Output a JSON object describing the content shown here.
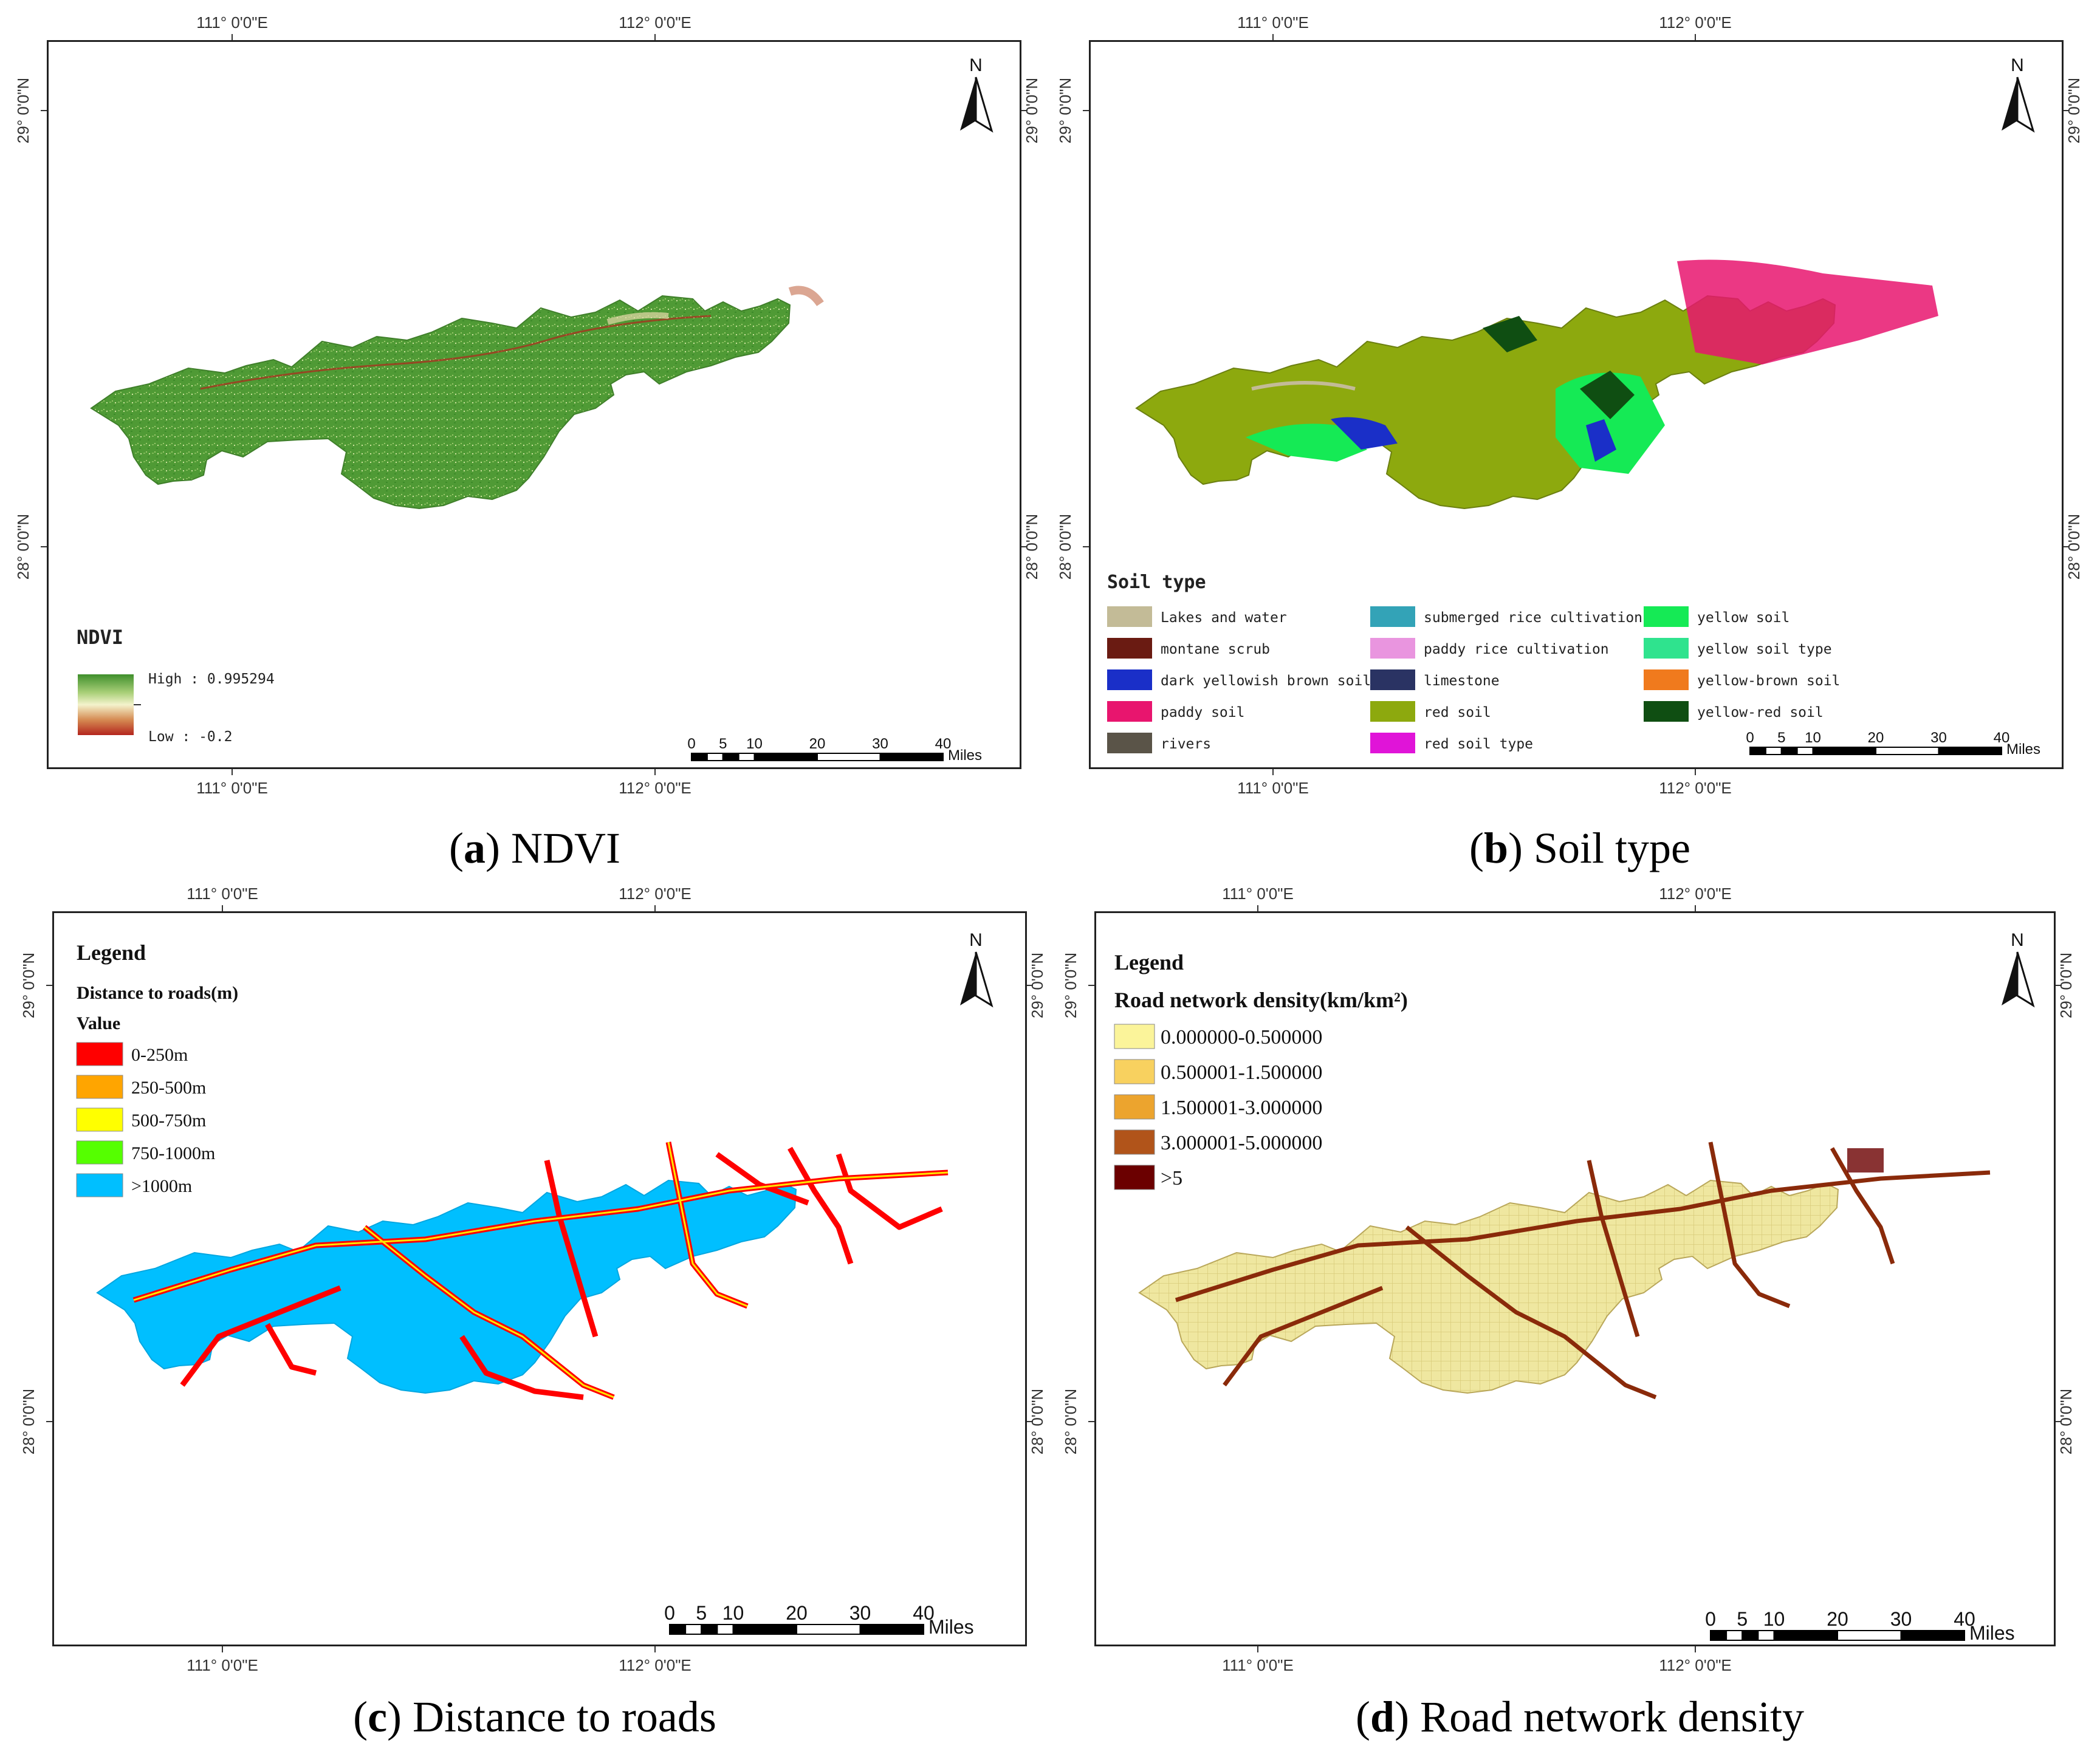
{
  "coords": {
    "lon_111": "111° 0'0\"E",
    "lon_112": "112° 0'0\"E",
    "lat_29": "29° 0'0\"N",
    "lat_28": "28° 0'0\"N"
  },
  "north_label": "N",
  "scale_bar": {
    "ticks": [
      "0",
      "5",
      "10",
      "20",
      "30",
      "40"
    ],
    "unit": "Miles"
  },
  "panel_a": {
    "caption_letter": "a",
    "caption_text": "NDVI",
    "legend": {
      "title": "NDVI",
      "high": "High : 0.995294",
      "low": "Low : -0.2",
      "high_value": 0.995294,
      "low_value": -0.2,
      "colors": [
        "#3f8f2c",
        "#a9cf78",
        "#f4f3cc",
        "#d58a52",
        "#b4251d"
      ]
    }
  },
  "panel_b": {
    "caption_letter": "b",
    "caption_text": "Soil type",
    "legend": {
      "title": "Soil type",
      "items": [
        {
          "label": "Lakes and water",
          "color": "#c3bb97"
        },
        {
          "label": "montane scrub",
          "color": "#6a1b12"
        },
        {
          "label": "dark yellowish brown soil",
          "color": "#1a2fc8"
        },
        {
          "label": "paddy soil",
          "color": "#e8156e"
        },
        {
          "label": "rivers",
          "color": "#5a5448"
        },
        {
          "label": "submerged rice cultivation",
          "color": "#33a3b7"
        },
        {
          "label": "paddy rice cultivation",
          "color": "#e995df"
        },
        {
          "label": "limestone",
          "color": "#2a3363"
        },
        {
          "label": "red soil",
          "color": "#8da90e"
        },
        {
          "label": "red soil type",
          "color": "#e014d8"
        },
        {
          "label": "yellow soil",
          "color": "#15ea55"
        },
        {
          "label": "yellow soil type",
          "color": "#2fe38e"
        },
        {
          "label": "yellow-brown soil",
          "color": "#f07a1d"
        },
        {
          "label": "yellow-red soil",
          "color": "#0f4e12"
        }
      ]
    }
  },
  "panel_c": {
    "caption_letter": "c",
    "caption_text": "Distance to roads",
    "legend": {
      "title": "Legend",
      "subtitle": "Distance to roads(m)",
      "value_label": "Value",
      "items": [
        {
          "label": "0-250m",
          "color": "#ff0000"
        },
        {
          "label": "250-500m",
          "color": "#ffa500"
        },
        {
          "label": "500-750m",
          "color": "#ffff00"
        },
        {
          "label": "750-1000m",
          "color": "#55ff00"
        },
        {
          "label": ">1000m",
          "color": "#00bfff"
        }
      ]
    }
  },
  "panel_d": {
    "caption_letter": "d",
    "caption_text": "Road network density",
    "legend": {
      "title": "Legend",
      "subtitle": "Road network density(km/km²)",
      "items": [
        {
          "label": "0.000000-0.500000",
          "color": "#fbf49a"
        },
        {
          "label": "0.500001-1.500000",
          "color": "#f8d15f"
        },
        {
          "label": "1.500001-3.000000",
          "color": "#eca42e"
        },
        {
          "label": "3.000001-5.000000",
          "color": "#b1541a"
        },
        {
          "label": ">5",
          "color": "#6b0000"
        }
      ]
    }
  }
}
